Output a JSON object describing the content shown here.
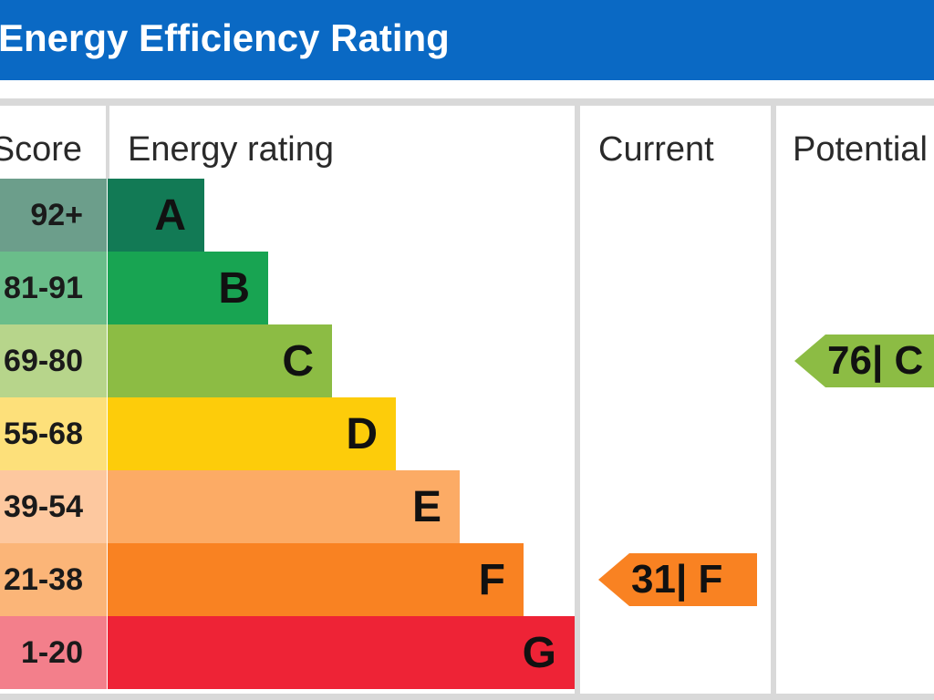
{
  "header": {
    "title": "Energy Efficiency Rating"
  },
  "columns": {
    "score": "Score",
    "rating": "Energy rating",
    "current": "Current",
    "potential": "Potential"
  },
  "chart_data": {
    "type": "bar",
    "title": "Energy Efficiency Rating",
    "categories": [
      "A",
      "B",
      "C",
      "D",
      "E",
      "F",
      "G"
    ],
    "score_ranges": [
      "92+",
      "81-91",
      "69-80",
      "55-68",
      "39-54",
      "21-38",
      "1-20"
    ],
    "band_colors": [
      "#127a55",
      "#18a452",
      "#8cbc44",
      "#fdcc0a",
      "#fcab65",
      "#f98222",
      "#ee2336"
    ],
    "score_colors": [
      "#6c9e8b",
      "#6abd8a",
      "#b7d58b",
      "#fde07a",
      "#fdc89f",
      "#fbb578",
      "#f37f8b"
    ],
    "current": {
      "value": 31,
      "band": "F",
      "label": "31| F"
    },
    "potential": {
      "value": 76,
      "band": "C",
      "label": "76| C"
    }
  }
}
